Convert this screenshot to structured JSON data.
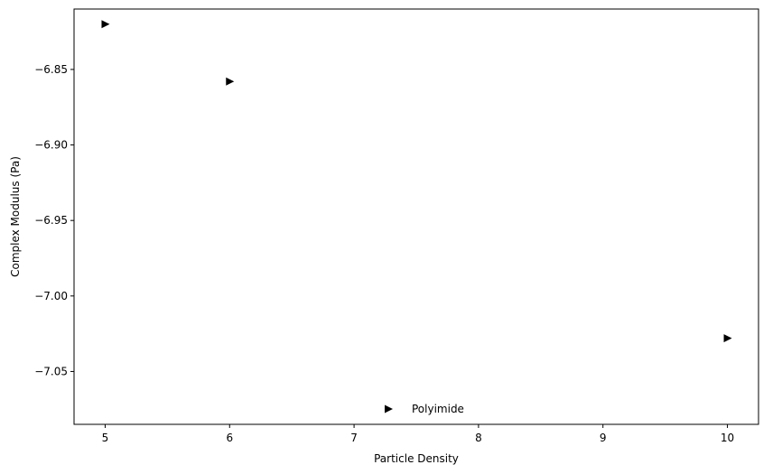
{
  "chart_data": {
    "type": "scatter",
    "xlabel": "Particle Density",
    "ylabel": "Complex Modulus (Pa)",
    "xlim": [
      4.75,
      10.25
    ],
    "ylim": [
      -7.085,
      -6.81
    ],
    "x_ticks": [
      5,
      6,
      7,
      8,
      9,
      10
    ],
    "y_ticks": [
      -6.85,
      -6.9,
      -6.95,
      -7.0,
      -7.05
    ],
    "y_tick_labels": [
      "−6.85",
      "−6.90",
      "−6.95",
      "−7.00",
      "−7.05"
    ],
    "marker": "triangle-right",
    "marker_color": "#000000",
    "grid": false,
    "legend_position": "lower-center",
    "series": [
      {
        "name": "Polyimide",
        "points": [
          {
            "x": 5,
            "y": -6.82
          },
          {
            "x": 6,
            "y": -6.858
          },
          {
            "x": 10,
            "y": -7.028
          }
        ]
      }
    ]
  }
}
